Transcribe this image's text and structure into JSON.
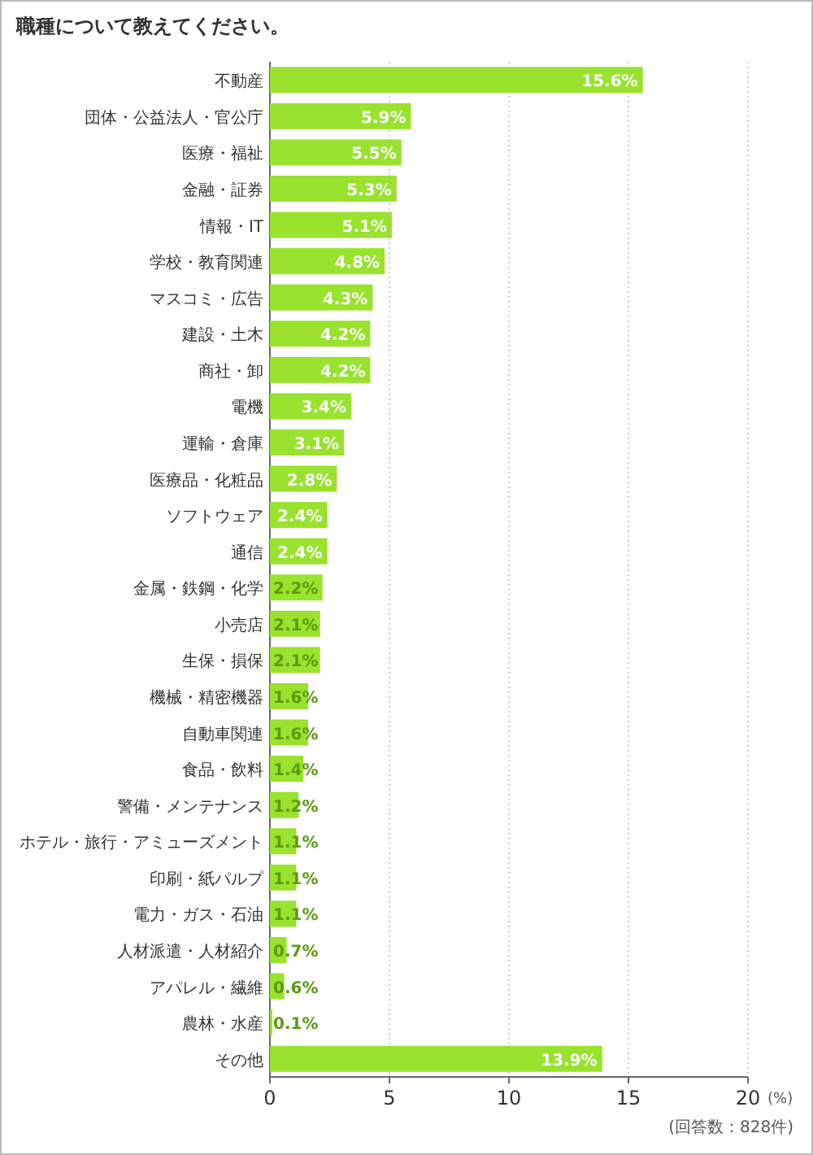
{
  "chart_data": {
    "type": "bar",
    "orientation": "horizontal",
    "title": "職種について教えてください。",
    "categories": [
      "不動産",
      "団体・公益法人・官公庁",
      "医療・福祉",
      "金融・証券",
      "情報・IT",
      "学校・教育関連",
      "マスコミ・広告",
      "建設・土木",
      "商社・卸",
      "電機",
      "運輸・倉庫",
      "医療品・化粧品",
      "ソフトウェア",
      "通信",
      "金属・鉄鋼・化学",
      "小売店",
      "生保・損保",
      "機械・精密機器",
      "自動車関連",
      "食品・飲料",
      "警備・メンテナンス",
      "ホテル・旅行・アミューズメント",
      "印刷・紙パルプ",
      "電力・ガス・石油",
      "人材派遣・人材紹介",
      "アパレル・繊維",
      "農林・水産",
      "その他"
    ],
    "values": [
      15.6,
      5.9,
      5.5,
      5.3,
      5.1,
      4.8,
      4.3,
      4.2,
      4.2,
      3.4,
      3.1,
      2.8,
      2.4,
      2.4,
      2.2,
      2.1,
      2.1,
      1.6,
      1.6,
      1.4,
      1.2,
      1.1,
      1.1,
      1.1,
      0.7,
      0.6,
      0.1,
      13.9
    ],
    "value_labels": [
      "15.6%",
      "5.9%",
      "5.5%",
      "5.3%",
      "5.1%",
      "4.8%",
      "4.3%",
      "4.2%",
      "4.2%",
      "3.4%",
      "3.1%",
      "2.8%",
      "2.4%",
      "2.4%",
      "2.2%",
      "2.1%",
      "2.1%",
      "1.6%",
      "1.6%",
      "1.4%",
      "1.2%",
      "1.1%",
      "1.1%",
      "1.1%",
      "0.7%",
      "0.6%",
      "0.1%",
      "13.9%"
    ],
    "color": "#99e22e",
    "xlim": [
      0,
      20
    ],
    "xticks": [
      0,
      5,
      10,
      15,
      20
    ],
    "xlabel": "(%)",
    "grid": "x",
    "annotations": [
      "(回答数：828件)"
    ]
  }
}
